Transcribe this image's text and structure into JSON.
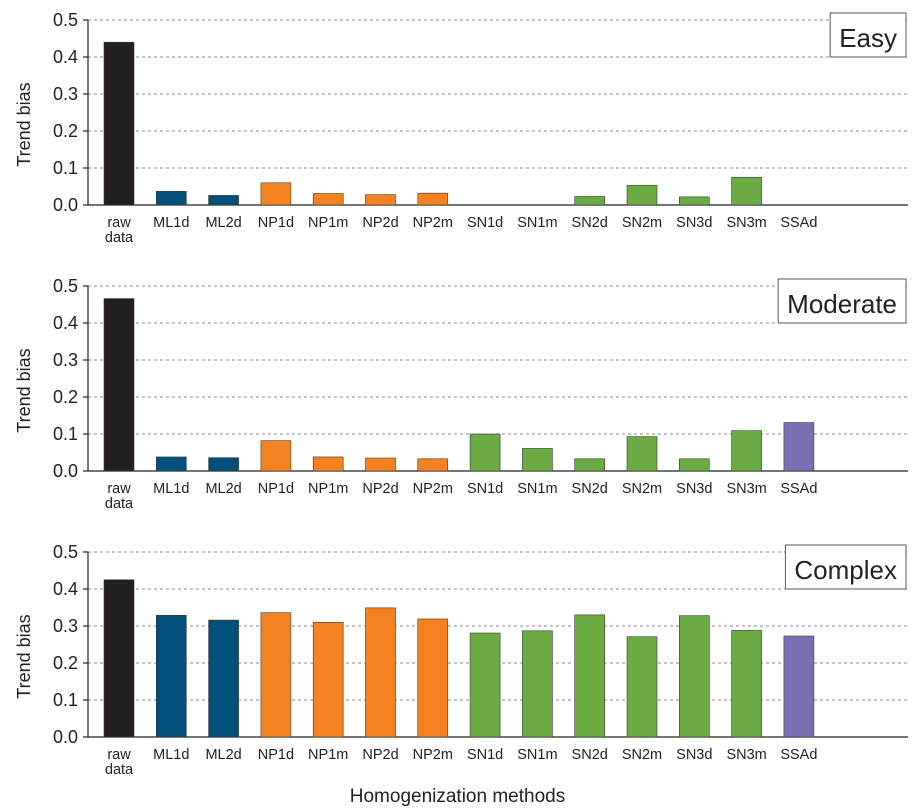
{
  "figure": {
    "xlabel": "Homogenization methods"
  },
  "colors": {
    "raw": "#231f20",
    "ml": "#00507a",
    "np": "#f58220",
    "sn": "#6aab44",
    "ssa": "#7970b3",
    "grid": "#888888",
    "axis": "#222222"
  },
  "chart_data": [
    {
      "type": "bar",
      "panel_title": "Easy",
      "ylabel": "Trend bias",
      "ylim": [
        0,
        0.5
      ],
      "yticks": [
        "0.0",
        "0.1",
        "0.2",
        "0.3",
        "0.4",
        "0.5"
      ],
      "grid": true,
      "categories": [
        "raw data",
        "ML1d",
        "ML2d",
        "NP1d",
        "NP1m",
        "NP2d",
        "NP2m",
        "SN1d",
        "SN1m",
        "SN2d",
        "SN2m",
        "SN3d",
        "SN3m",
        "SSAd"
      ],
      "groups": [
        "raw",
        "ml",
        "ml",
        "np",
        "np",
        "np",
        "np",
        "sn",
        "sn",
        "sn",
        "sn",
        "sn",
        "sn",
        "ssa"
      ],
      "values": [
        0.44,
        0.037,
        0.026,
        0.06,
        0.031,
        0.028,
        0.032,
        0,
        0,
        0.023,
        0.053,
        0.022,
        0.075,
        0
      ]
    },
    {
      "type": "bar",
      "panel_title": "Moderate",
      "ylabel": "Trend bias",
      "ylim": [
        0,
        0.5
      ],
      "yticks": [
        "0.0",
        "0.1",
        "0.2",
        "0.3",
        "0.4",
        "0.5"
      ],
      "grid": true,
      "categories": [
        "raw data",
        "ML1d",
        "ML2d",
        "NP1d",
        "NP1m",
        "NP2d",
        "NP2m",
        "SN1d",
        "SN1m",
        "SN2d",
        "SN2m",
        "SN3d",
        "SN3m",
        "SSAd"
      ],
      "groups": [
        "raw",
        "ml",
        "ml",
        "np",
        "np",
        "np",
        "np",
        "sn",
        "sn",
        "sn",
        "sn",
        "sn",
        "sn",
        "ssa"
      ],
      "values": [
        0.466,
        0.038,
        0.036,
        0.082,
        0.038,
        0.035,
        0.033,
        0.1,
        0.061,
        0.033,
        0.093,
        0.033,
        0.109,
        0.131
      ]
    },
    {
      "type": "bar",
      "panel_title": "Complex",
      "ylabel": "Trend bias",
      "ylim": [
        0,
        0.5
      ],
      "yticks": [
        "0.0",
        "0.1",
        "0.2",
        "0.3",
        "0.4",
        "0.5"
      ],
      "grid": true,
      "categories": [
        "raw data",
        "ML1d",
        "ML2d",
        "NP1d",
        "NP1m",
        "NP2d",
        "NP2m",
        "SN1d",
        "SN1m",
        "SN2d",
        "SN2m",
        "SN3d",
        "SN3m",
        "SSAd"
      ],
      "groups": [
        "raw",
        "ml",
        "ml",
        "np",
        "np",
        "np",
        "np",
        "sn",
        "sn",
        "sn",
        "sn",
        "sn",
        "sn",
        "ssa"
      ],
      "values": [
        0.425,
        0.329,
        0.316,
        0.336,
        0.31,
        0.349,
        0.319,
        0.281,
        0.287,
        0.33,
        0.271,
        0.328,
        0.288,
        0.273
      ]
    }
  ]
}
